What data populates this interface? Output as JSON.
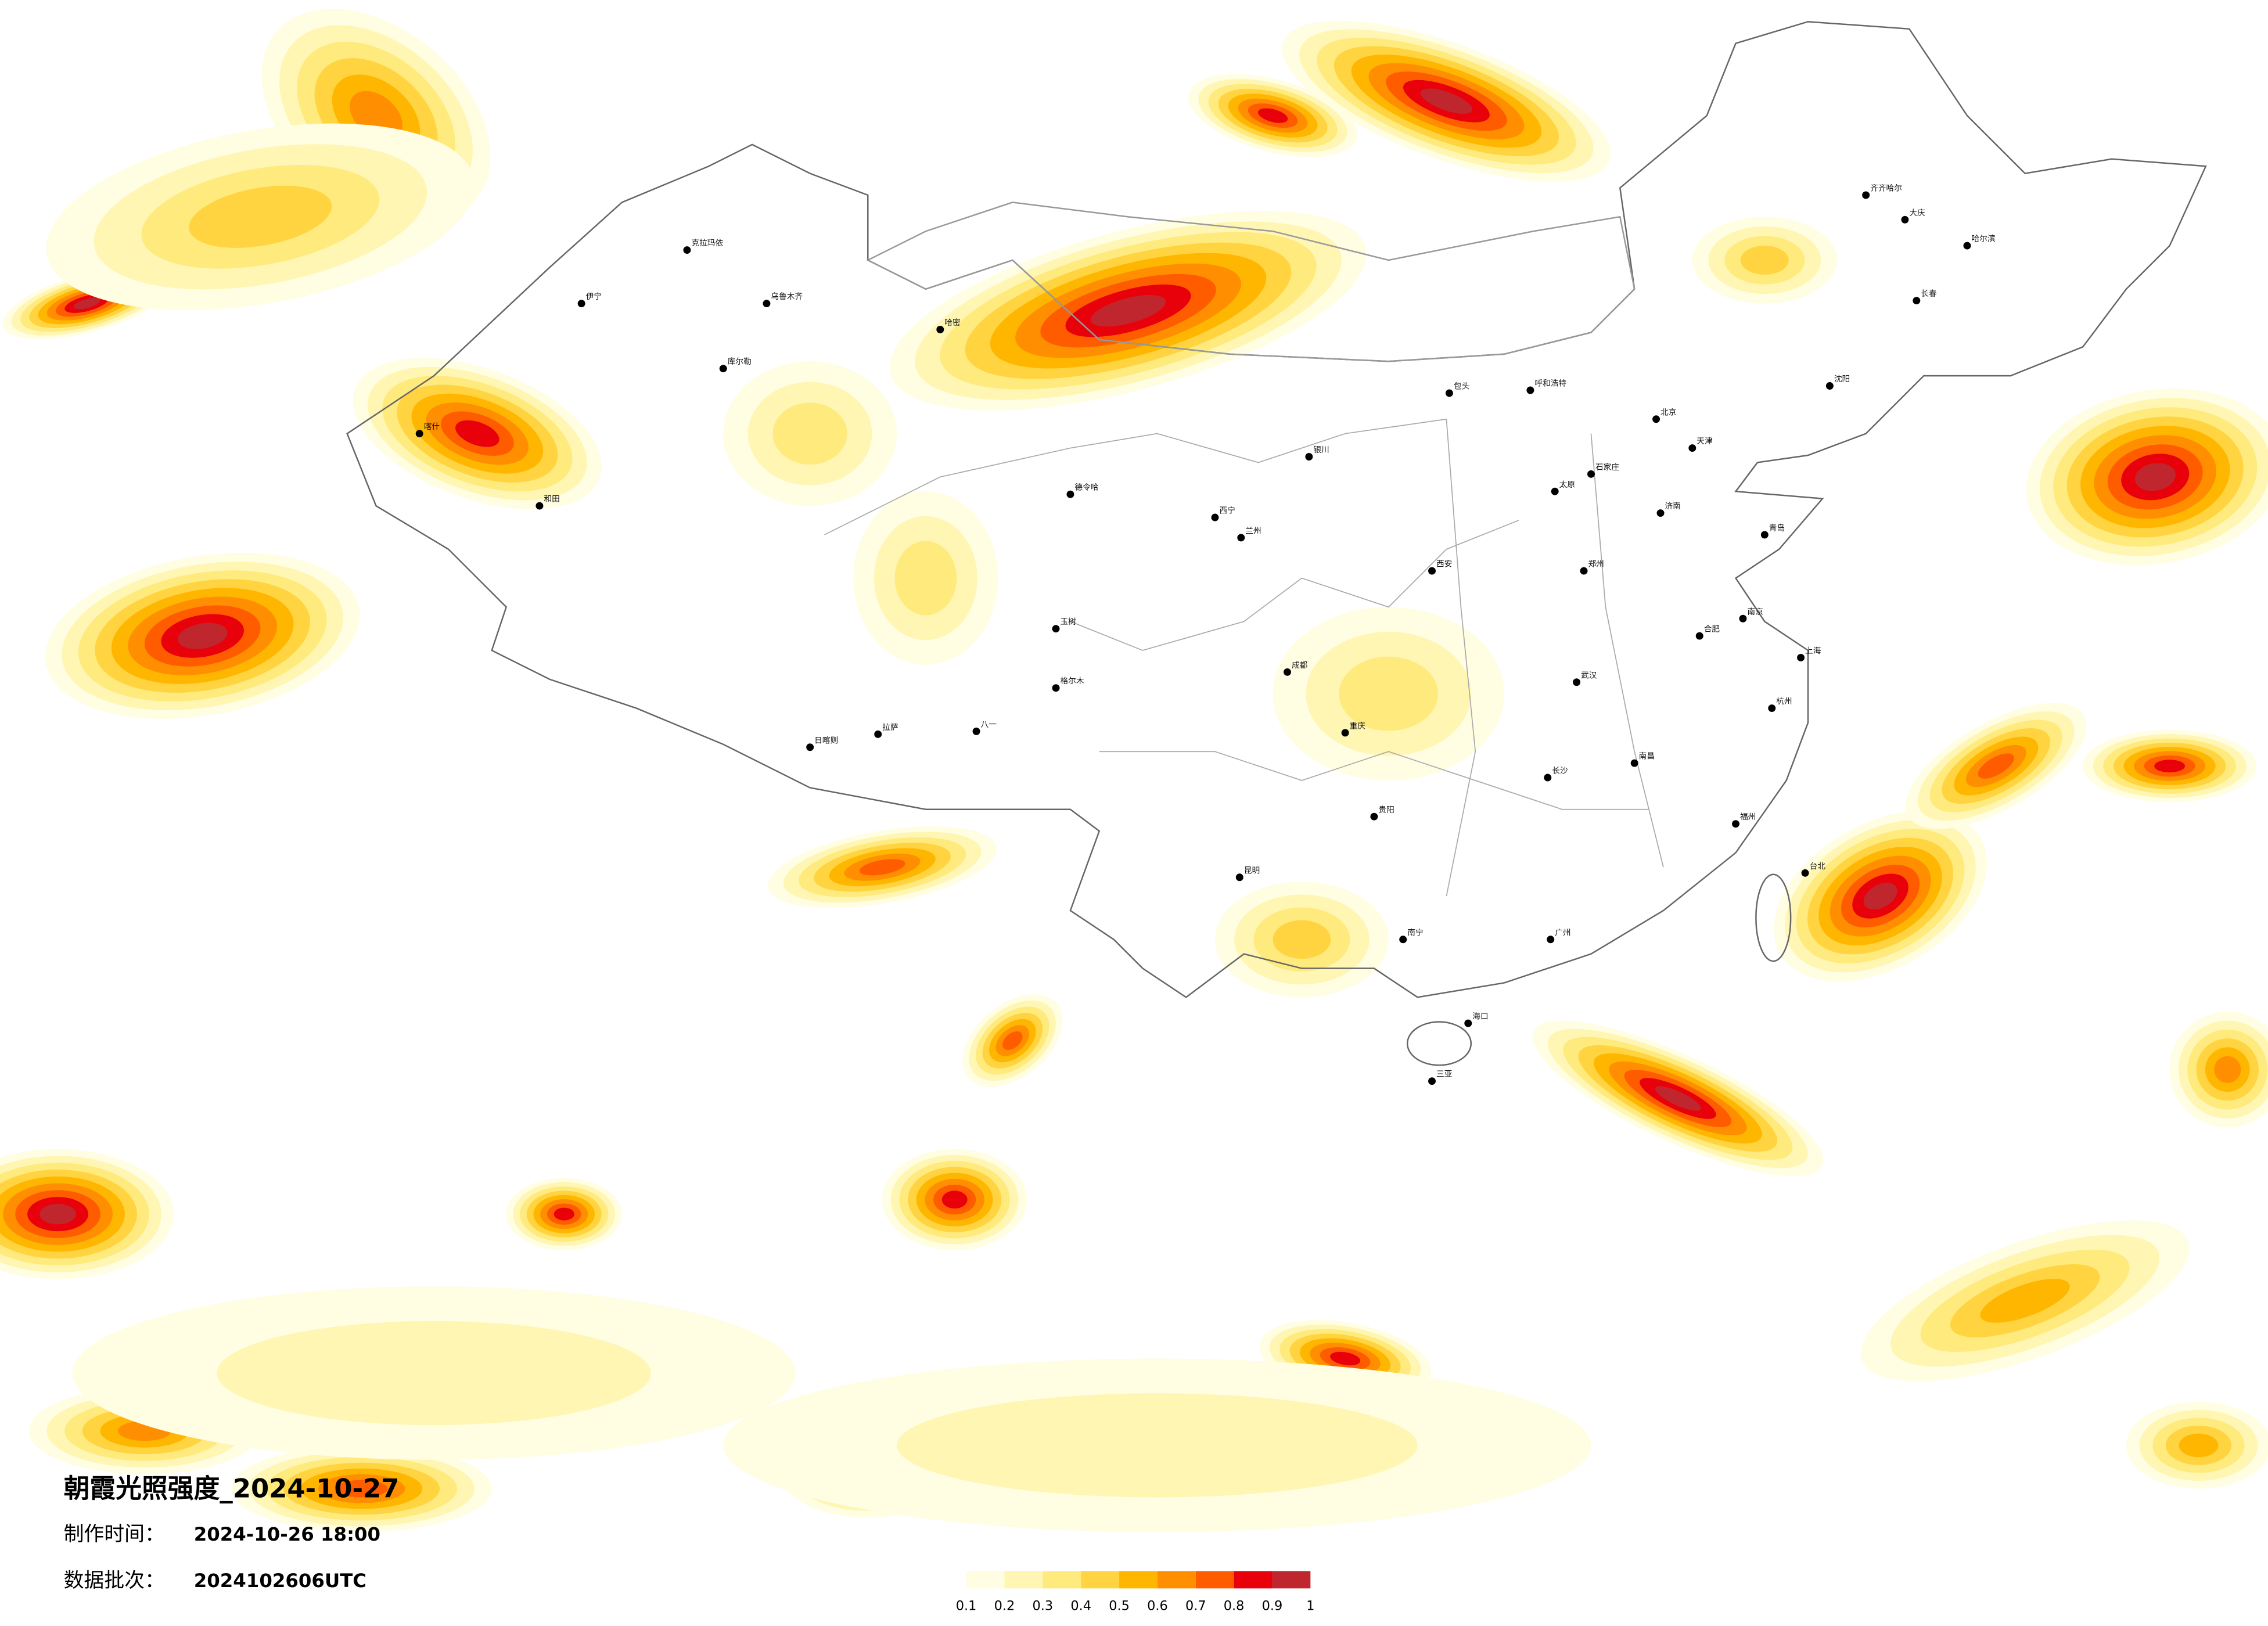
{
  "title": "朝霞光照强度_2024-10-27",
  "made_time": {
    "label": "制作时间：",
    "value": "2024-10-26 18:00"
  },
  "batch": {
    "label": "数据批次：",
    "value": "2024102606UTC"
  },
  "legend": {
    "ticks": [
      0.1,
      0.2,
      0.3,
      0.4,
      0.5,
      0.6,
      0.7,
      0.8,
      0.9,
      1
    ],
    "colors": [
      "#fffde2",
      "#fff6b4",
      "#ffea7e",
      "#ffd440",
      "#ffb600",
      "#ff8e00",
      "#ff5c00",
      "#e8000b",
      "#c0262d"
    ]
  },
  "cities": [
    "克拉玛依",
    "乌鲁木齐",
    "哈密",
    "库尔勒",
    "喀什",
    "和田",
    "伊宁",
    "日喀则",
    "拉萨",
    "八一",
    "格尔木",
    "德令哈",
    "玉树",
    "西宁",
    "兰州",
    "银川",
    "呼和浩特",
    "包头",
    "太原",
    "石家庄",
    "北京",
    "天津",
    "沈阳",
    "长春",
    "哈尔滨",
    "齐齐哈尔",
    "大庆",
    "济南",
    "青岛",
    "郑州",
    "西安",
    "武汉",
    "合肥",
    "南京",
    "上海",
    "杭州",
    "南昌",
    "长沙",
    "成都",
    "重庆",
    "贵阳",
    "昆明",
    "南宁",
    "广州",
    "福州",
    "台北",
    "海口",
    "三亚"
  ]
}
